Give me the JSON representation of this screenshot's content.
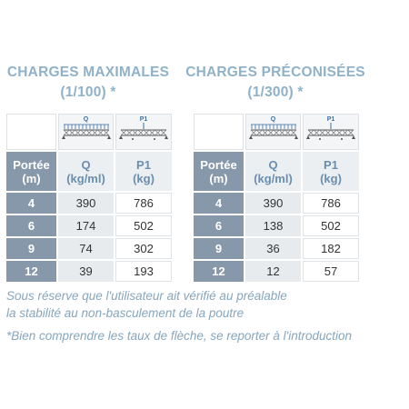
{
  "tables": [
    {
      "title": "CHARGES MAXIMALES",
      "subtitle": "(1/100) *",
      "icon_labels": [
        "Q",
        "P1"
      ],
      "headers": [
        [
          "Portée",
          "(m)"
        ],
        [
          "Q",
          "(kg/ml)"
        ],
        [
          "P1",
          "(kg)"
        ]
      ],
      "rows": [
        [
          4,
          390,
          786
        ],
        [
          6,
          174,
          502
        ],
        [
          9,
          74,
          302
        ],
        [
          12,
          39,
          193
        ]
      ]
    },
    {
      "title": "CHARGES PRÉCONISÉES",
      "subtitle": "(1/300) *",
      "icon_labels": [
        "Q",
        "P1"
      ],
      "headers": [
        [
          "Portée",
          "(m)"
        ],
        [
          "Q",
          "(kg/ml)"
        ],
        [
          "P1",
          "(kg)"
        ]
      ],
      "rows": [
        [
          4,
          390,
          786
        ],
        [
          6,
          138,
          502
        ],
        [
          9,
          36,
          182
        ],
        [
          12,
          12,
          57
        ]
      ]
    }
  ],
  "notes": [
    "Sous réserve que l'utilisateur ait vérifié au préalable",
    "la stabilité au non-basculement de la poutre",
    "*Bien comprendre les taux de flèche, se reporter à l'introduction"
  ]
}
